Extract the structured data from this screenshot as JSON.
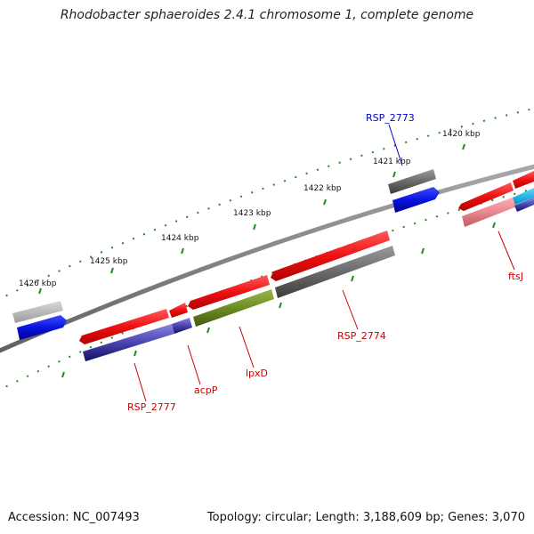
{
  "title": "Rhodobacter sphaeroides 2.4.1 chromosome 1, complete genome",
  "footer": {
    "accession": "Accession: NC_007493",
    "summary": "Topology: circular; Length: 3,188,609 bp; Genes: 3,070"
  },
  "ticks": [
    {
      "label": "1426 kbp"
    },
    {
      "label": "1425 kbp"
    },
    {
      "label": "1424 kbp"
    },
    {
      "label": "1423 kbp"
    },
    {
      "label": "1422 kbp"
    },
    {
      "label": "1421 kbp"
    },
    {
      "label": "1420 kbp"
    }
  ],
  "gene_labels": [
    {
      "text": "RSP_2773",
      "color": "#0000cc"
    },
    {
      "text": "ftsJ",
      "color": "#cc0000"
    },
    {
      "text": "RSP_2774",
      "color": "#cc0000"
    },
    {
      "text": "lpxD",
      "color": "#cc0000"
    },
    {
      "text": "acpP",
      "color": "#cc0000"
    },
    {
      "text": "RSP_2777",
      "color": "#cc0000"
    }
  ],
  "colors": {
    "cds": "#e8131b",
    "backbone": "#808080",
    "tick": "#228b22",
    "blue": "#0a14e0",
    "navy": "#1c1c8c",
    "olive": "#6b8e23",
    "gray": "#6a6a6a",
    "cyan": "#00b4f0",
    "pink": "#e88890"
  }
}
